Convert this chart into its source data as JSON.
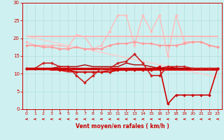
{
  "title": "",
  "xlabel": "Vent moyen/en rafales ( km/h )",
  "bg_color": "#cff0f0",
  "grid_color": "#b0dede",
  "xlim": [
    -0.5,
    23.5
  ],
  "ylim": [
    0,
    30
  ],
  "yticks": [
    0,
    5,
    10,
    15,
    20,
    25,
    30
  ],
  "xticks": [
    0,
    1,
    2,
    3,
    4,
    5,
    6,
    7,
    8,
    9,
    10,
    11,
    12,
    13,
    14,
    15,
    16,
    17,
    18,
    19,
    20,
    21,
    22,
    23
  ],
  "series": [
    {
      "x": [
        0,
        1,
        2,
        3,
        4,
        5,
        6,
        7,
        8,
        9,
        10,
        11,
        12,
        13,
        14,
        15,
        16,
        17,
        18,
        19,
        20,
        21,
        22,
        23
      ],
      "y": [
        20.5,
        20.5,
        20.5,
        20.5,
        20.5,
        20.5,
        20.5,
        20.5,
        20.5,
        20.5,
        20.5,
        20.5,
        20.5,
        20.5,
        20.5,
        20.5,
        20.5,
        20.5,
        20.5,
        20.5,
        20.5,
        20.5,
        20.5,
        20.5
      ],
      "color": "#ffaaaa",
      "lw": 1.2,
      "marker": null
    },
    {
      "x": [
        0,
        1,
        2,
        3,
        4,
        5,
        6,
        7,
        8,
        9,
        10,
        11,
        12,
        13,
        14,
        15,
        16,
        17,
        18,
        19,
        20,
        21,
        22,
        23
      ],
      "y": [
        19.0,
        18.0,
        18.0,
        18.0,
        18.0,
        17.5,
        21.0,
        20.5,
        17.0,
        18.0,
        22.0,
        26.5,
        26.5,
        18.0,
        26.5,
        22.0,
        26.5,
        15.0,
        26.5,
        19.0,
        19.0,
        19.0,
        18.0,
        17.5
      ],
      "color": "#ffbbbb",
      "lw": 1.0,
      "marker": "D",
      "markersize": 2.0
    },
    {
      "x": [
        0,
        1,
        2,
        3,
        4,
        5,
        6,
        7,
        8,
        9,
        10,
        11,
        12,
        13,
        14,
        15,
        16,
        17,
        18,
        19,
        20,
        21,
        22,
        23
      ],
      "y": [
        18.0,
        18.0,
        17.5,
        17.5,
        17.0,
        17.0,
        17.5,
        17.0,
        17.0,
        17.0,
        18.0,
        18.5,
        18.5,
        19.0,
        18.5,
        18.5,
        18.0,
        18.0,
        18.0,
        18.5,
        19.0,
        19.0,
        18.0,
        17.5
      ],
      "color": "#ff9999",
      "lw": 1.2,
      "marker": "D",
      "markersize": 2.0
    },
    {
      "x": [
        0,
        23
      ],
      "y": [
        20.5,
        9.0
      ],
      "color": "#ffcccc",
      "lw": 1.0,
      "marker": null
    },
    {
      "x": [
        0,
        1,
        2,
        3,
        4,
        5,
        6,
        7,
        8,
        9,
        10,
        11,
        12,
        13,
        14,
        15,
        16,
        17,
        18,
        19,
        20,
        21,
        22,
        23
      ],
      "y": [
        11.5,
        11.5,
        13.0,
        13.0,
        12.0,
        12.0,
        9.5,
        7.5,
        9.5,
        11.5,
        11.5,
        13.0,
        13.5,
        15.5,
        13.0,
        9.5,
        9.5,
        12.0,
        12.0,
        12.0,
        11.5,
        11.5,
        11.5,
        11.5
      ],
      "color": "#cc2222",
      "lw": 1.2,
      "marker": "D",
      "markersize": 2.0
    },
    {
      "x": [
        0,
        23
      ],
      "y": [
        11.5,
        11.5
      ],
      "color": "#cc0000",
      "lw": 2.5,
      "marker": null
    },
    {
      "x": [
        0,
        1,
        2,
        3,
        4,
        5,
        6,
        7,
        8,
        9,
        10,
        11,
        12,
        13,
        14,
        15,
        16,
        17,
        18,
        19,
        20,
        21,
        22,
        23
      ],
      "y": [
        11.5,
        11.5,
        11.5,
        11.5,
        12.0,
        12.0,
        12.0,
        12.5,
        12.0,
        12.0,
        12.0,
        12.0,
        13.0,
        12.5,
        12.5,
        12.0,
        11.5,
        12.0,
        11.5,
        11.5,
        11.5,
        11.5,
        11.5,
        11.5
      ],
      "color": "#aa0000",
      "lw": 1.0,
      "marker": null
    },
    {
      "x": [
        0,
        1,
        2,
        3,
        4,
        5,
        6,
        7,
        8,
        9,
        10,
        11,
        12,
        13,
        14,
        15,
        16,
        17,
        18,
        19,
        20,
        21,
        22,
        23
      ],
      "y": [
        11.5,
        11.5,
        11.5,
        11.0,
        11.0,
        10.5,
        10.5,
        10.5,
        10.5,
        10.5,
        11.0,
        11.0,
        11.0,
        11.0,
        11.0,
        11.0,
        11.0,
        11.0,
        11.0,
        11.0,
        11.0,
        11.0,
        11.0,
        11.0
      ],
      "color": "#dd1111",
      "lw": 1.0,
      "marker": null
    },
    {
      "x": [
        0,
        1,
        2,
        3,
        4,
        5,
        6,
        7,
        8,
        9,
        10,
        11,
        12,
        13,
        14,
        15,
        16,
        17,
        18,
        19,
        20,
        21,
        22,
        23
      ],
      "y": [
        11.5,
        11.5,
        11.5,
        11.5,
        11.0,
        11.0,
        10.5,
        10.5,
        10.5,
        10.5,
        10.5,
        11.0,
        11.0,
        11.0,
        11.0,
        11.0,
        12.0,
        1.5,
        4.0,
        4.0,
        4.0,
        4.0,
        4.0,
        11.5
      ],
      "color": "#cc0000",
      "lw": 1.2,
      "marker": "D",
      "markersize": 2.0
    }
  ],
  "arrow_color": "#cc0000",
  "spine_color": "#cc0000"
}
